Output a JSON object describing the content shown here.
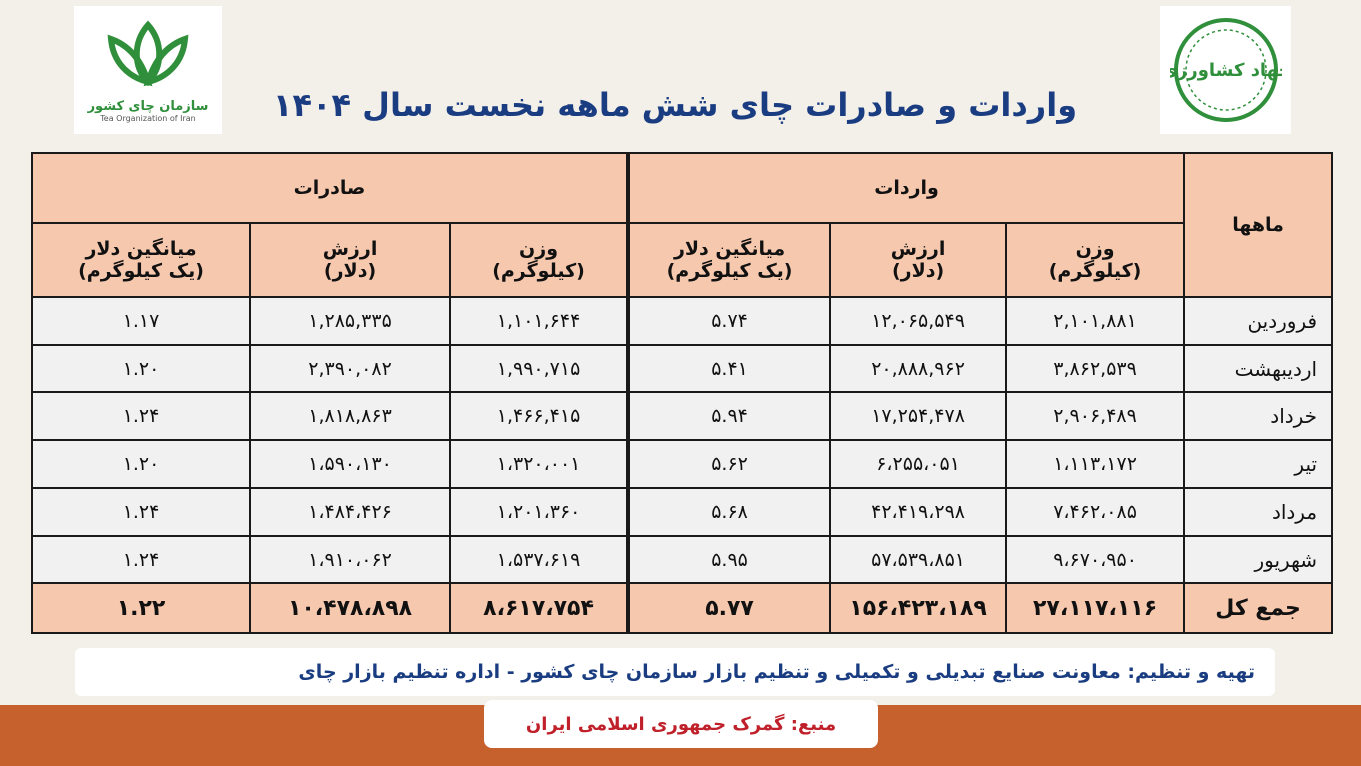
{
  "title": "واردات و صادرات چای شش ماهه نخست سال ۱۴۰۴",
  "logos": {
    "left_name": "سازمان چای کشور",
    "left_sub": "Tea Organization of Iran",
    "right_name": "جهاد کشاورزی"
  },
  "table": {
    "col_months": "ماهها",
    "group_imports": "واردات",
    "group_exports": "صادرات",
    "sub_weight": "وزن\n(کیلوگرم)",
    "sub_value": "ارزش\n(دلار)",
    "sub_avg": "میانگین دلار\n(یک کیلوگرم)",
    "rows": [
      {
        "month": "فروردین",
        "imp_weight": "۲,۱۰۱,۸۸۱",
        "imp_value": "۱۲,۰۶۵,۵۴۹",
        "imp_avg": "۵.۷۴",
        "exp_weight": "۱,۱۰۱,۶۴۴",
        "exp_value": "۱,۲۸۵,۳۳۵",
        "exp_avg": "۱.۱۷"
      },
      {
        "month": "اردیبهشت",
        "imp_weight": "۳,۸۶۲,۵۳۹",
        "imp_value": "۲۰,۸۸۸,۹۶۲",
        "imp_avg": "۵.۴۱",
        "exp_weight": "۱,۹۹۰,۷۱۵",
        "exp_value": "۲,۳۹۰,۰۸۲",
        "exp_avg": "۱.۲۰"
      },
      {
        "month": "خرداد",
        "imp_weight": "۲,۹۰۶,۴۸۹",
        "imp_value": "۱۷,۲۵۴,۴۷۸",
        "imp_avg": "۵.۹۴",
        "exp_weight": "۱,۴۶۶,۴۱۵",
        "exp_value": "۱,۸۱۸,۸۶۳",
        "exp_avg": "۱.۲۴"
      },
      {
        "month": "تیر",
        "imp_weight": "۱،۱۱۳،۱۷۲",
        "imp_value": "۶،۲۵۵،۰۵۱",
        "imp_avg": "۵.۶۲",
        "exp_weight": "۱،۳۲۰،۰۰۱",
        "exp_value": "۱،۵۹۰،۱۳۰",
        "exp_avg": "۱.۲۰"
      },
      {
        "month": "مرداد",
        "imp_weight": "۷،۴۶۲،۰۸۵",
        "imp_value": "۴۲،۴۱۹،۲۹۸",
        "imp_avg": "۵.۶۸",
        "exp_weight": "۱،۲۰۱،۳۶۰",
        "exp_value": "۱،۴۸۴،۴۲۶",
        "exp_avg": "۱.۲۴"
      },
      {
        "month": "شهریور",
        "imp_weight": "۹،۶۷۰،۹۵۰",
        "imp_value": "۵۷،۵۳۹،۸۵۱",
        "imp_avg": "۵.۹۵",
        "exp_weight": "۱،۵۳۷،۶۱۹",
        "exp_value": "۱،۹۱۰،۰۶۲",
        "exp_avg": "۱.۲۴"
      }
    ],
    "total": {
      "month": "جمع کل",
      "imp_weight": "۲۷،۱۱۷،۱۱۶",
      "imp_value": "۱۵۶،۴۲۳،۱۸۹",
      "imp_avg": "۵.۷۷",
      "exp_weight": "۸،۶۱۷،۷۵۴",
      "exp_value": "۱۰،۴۷۸،۸۹۸",
      "exp_avg": "۱.۲۲"
    }
  },
  "credit": "تهیه و تنظیم:  معاونت صنایع تبدیلی و تکمیلی و تنظیم بازار سازمان چای کشور - اداره تنظیم بازار چای",
  "source": "منبع: گمرک جمهوری اسلامی ایران",
  "colors": {
    "header_bg": "#f6c8ae",
    "title": "#1a3d82",
    "bar": "#c6602c",
    "source_text": "#c0202a"
  }
}
